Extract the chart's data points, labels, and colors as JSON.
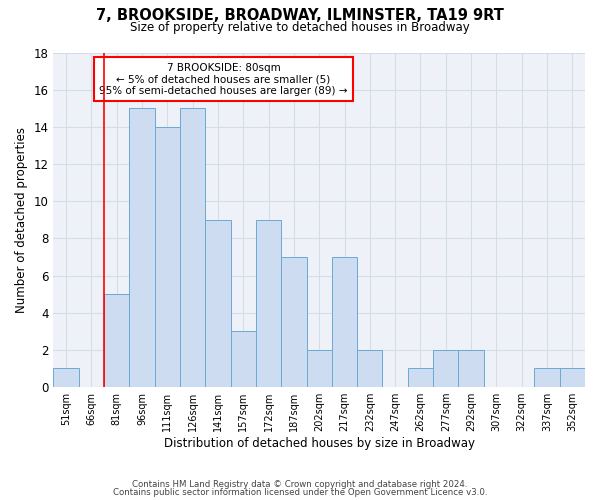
{
  "title": "7, BROOKSIDE, BROADWAY, ILMINSTER, TA19 9RT",
  "subtitle": "Size of property relative to detached houses in Broadway",
  "xlabel": "Distribution of detached houses by size in Broadway",
  "ylabel": "Number of detached properties",
  "footer_lines": [
    "Contains HM Land Registry data © Crown copyright and database right 2024.",
    "Contains public sector information licensed under the Open Government Licence v3.0."
  ],
  "bin_labels": [
    "51sqm",
    "66sqm",
    "81sqm",
    "96sqm",
    "111sqm",
    "126sqm",
    "141sqm",
    "157sqm",
    "172sqm",
    "187sqm",
    "202sqm",
    "217sqm",
    "232sqm",
    "247sqm",
    "262sqm",
    "277sqm",
    "292sqm",
    "307sqm",
    "322sqm",
    "337sqm",
    "352sqm"
  ],
  "bar_values": [
    1,
    0,
    5,
    15,
    14,
    15,
    9,
    3,
    9,
    7,
    2,
    7,
    2,
    0,
    1,
    2,
    2,
    0,
    0,
    1,
    1
  ],
  "bar_color": "#cddcf0",
  "bar_edge_color": "#6aaad4",
  "ylim": [
    0,
    18
  ],
  "yticks": [
    0,
    2,
    4,
    6,
    8,
    10,
    12,
    14,
    16,
    18
  ],
  "annotation_line1": "7 BROOKSIDE: 80sqm",
  "annotation_line2": "← 5% of detached houses are smaller (5)",
  "annotation_line3": "95% of semi-detached houses are larger (89) →",
  "red_line_bin_index": 2,
  "grid_color": "#d4dce8",
  "background_color": "#eef2f8"
}
